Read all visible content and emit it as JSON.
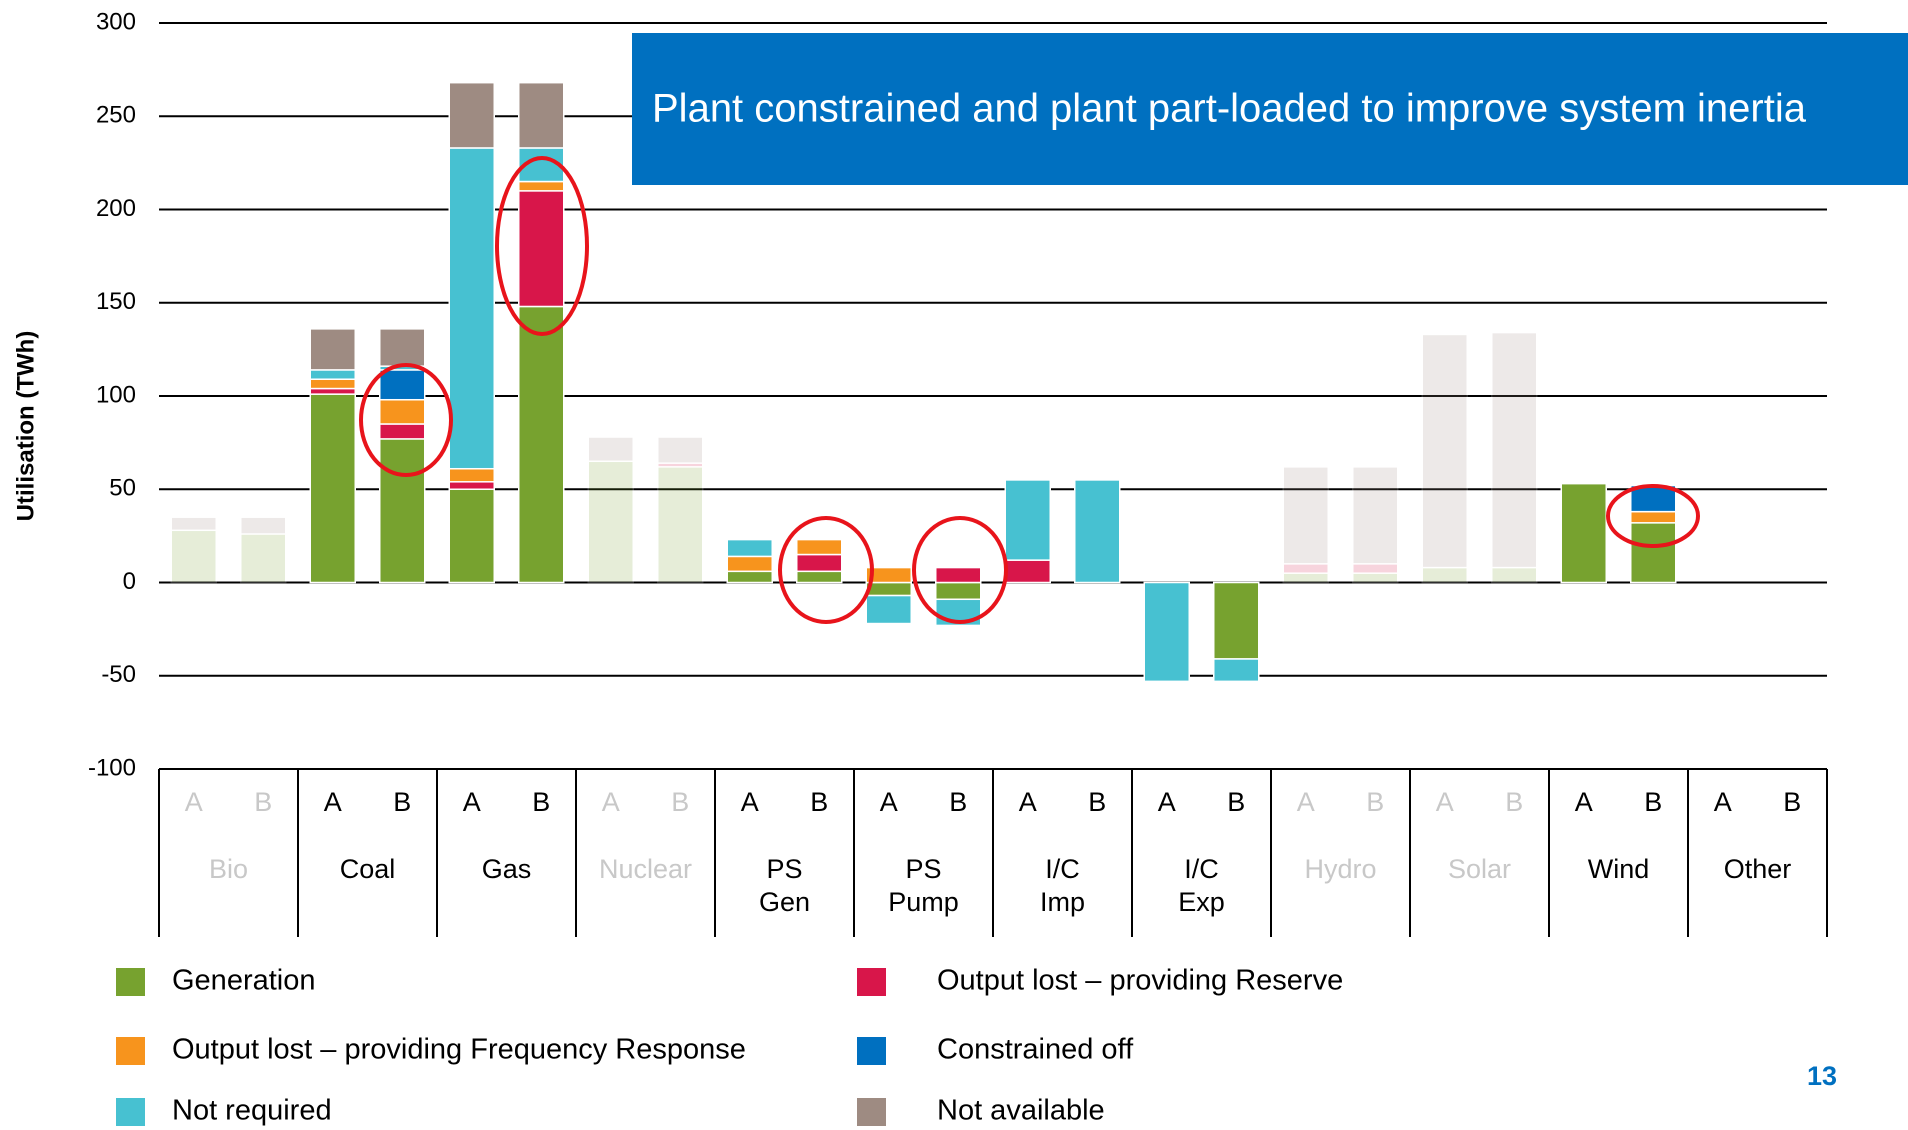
{
  "chart_data": {
    "type": "bar",
    "stacked": true,
    "ylabel": "Utilisation (TWh)",
    "ylim": [
      -100,
      300
    ],
    "yticks": [
      -100,
      -50,
      0,
      50,
      100,
      150,
      200,
      250,
      300
    ],
    "grid": true,
    "annotation": "Plant constrained and plant part-loaded to improve system inertia",
    "page_number": "13",
    "categories": [
      "A",
      "B",
      "A",
      "B",
      "A",
      "B",
      "A",
      "B",
      "A",
      "B",
      "A",
      "B",
      "A",
      "B",
      "A",
      "B",
      "A",
      "B",
      "A",
      "B",
      "A",
      "B",
      "A",
      "B"
    ],
    "groups": [
      {
        "name": [
          "Bio"
        ],
        "faded": true
      },
      {
        "name": [
          "Coal"
        ],
        "faded": false
      },
      {
        "name": [
          "Gas"
        ],
        "faded": false
      },
      {
        "name": [
          "Nuclear"
        ],
        "faded": true
      },
      {
        "name": [
          "PS",
          "Gen"
        ],
        "faded": false
      },
      {
        "name": [
          "PS",
          "Pump"
        ],
        "faded": false
      },
      {
        "name": [
          "I/C",
          "Imp"
        ],
        "faded": false
      },
      {
        "name": [
          "I/C",
          "Exp"
        ],
        "faded": false
      },
      {
        "name": [
          "Hydro"
        ],
        "faded": true
      },
      {
        "name": [
          "Solar"
        ],
        "faded": true
      },
      {
        "name": [
          "Wind"
        ],
        "faded": false
      },
      {
        "name": [
          "Other"
        ],
        "faded": false
      }
    ],
    "series": [
      {
        "name": "Generation",
        "color": "#77a22f",
        "values": [
          28,
          26,
          101,
          77,
          50,
          148,
          65,
          62,
          6,
          6,
          -7,
          -9,
          null,
          null,
          null,
          -41,
          5,
          5,
          8,
          8,
          53,
          32,
          null,
          null
        ]
      },
      {
        "name": "Output lost – providing Reserve",
        "color": "#d8164a",
        "values": [
          null,
          null,
          3,
          8,
          4,
          62,
          null,
          2,
          null,
          9,
          null,
          8,
          12,
          null,
          null,
          null,
          5,
          5,
          null,
          null,
          null,
          null,
          null,
          null
        ]
      },
      {
        "name": "Output lost – providing Frequency Response",
        "color": "#f7941d",
        "values": [
          null,
          null,
          5,
          13,
          7,
          5,
          null,
          null,
          8,
          8,
          8,
          null,
          null,
          null,
          null,
          null,
          null,
          null,
          null,
          null,
          null,
          6,
          null,
          null
        ]
      },
      {
        "name": "Constrained off",
        "color": "#0070c0",
        "values": [
          null,
          null,
          null,
          16,
          null,
          null,
          null,
          null,
          null,
          null,
          null,
          null,
          null,
          null,
          null,
          null,
          null,
          null,
          null,
          null,
          null,
          14,
          null,
          null
        ]
      },
      {
        "name": "Not required",
        "color": "#47c1d1",
        "values": [
          null,
          null,
          5,
          2,
          172,
          18,
          null,
          null,
          9,
          null,
          -15,
          -14,
          43,
          55,
          -53,
          -12,
          null,
          null,
          null,
          null,
          null,
          null,
          null,
          null
        ]
      },
      {
        "name": "Not available",
        "color": "#9e8b82",
        "values": [
          7,
          9,
          22,
          20,
          35,
          35,
          13,
          14,
          null,
          null,
          null,
          null,
          null,
          null,
          null,
          null,
          52,
          52,
          125,
          126,
          null,
          null,
          null,
          null
        ]
      }
    ]
  }
}
